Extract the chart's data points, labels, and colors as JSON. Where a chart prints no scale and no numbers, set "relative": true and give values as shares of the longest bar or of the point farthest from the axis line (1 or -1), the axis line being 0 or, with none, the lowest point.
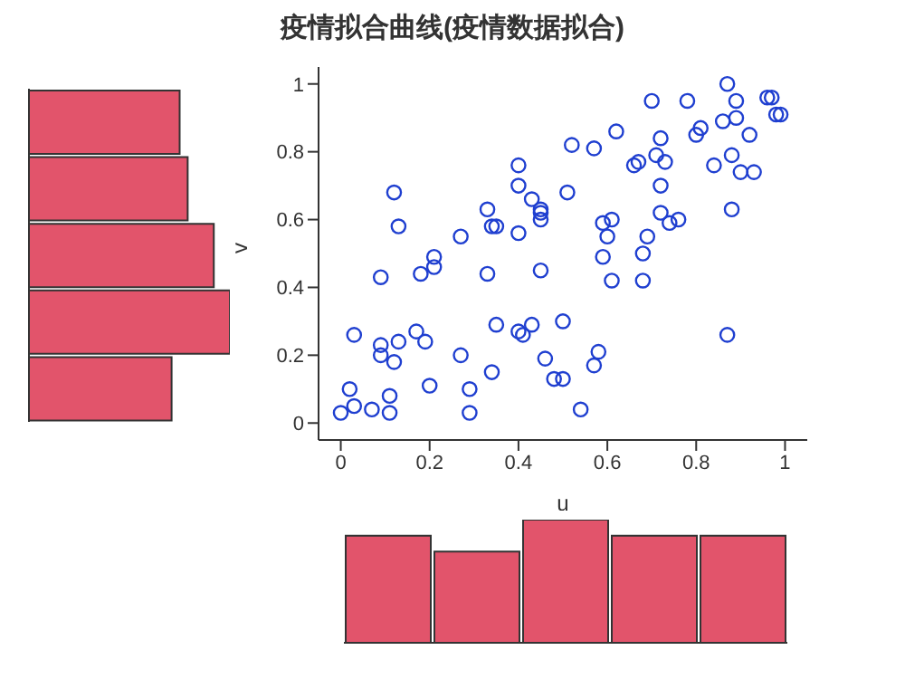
{
  "chart_data": [
    {
      "type": "scatter",
      "title": "疫情拟合曲线(疫情数据拟合)",
      "xlabel": "u",
      "ylabel": "v",
      "marker": "circle",
      "color": "#1f3fd0",
      "xlim": [
        -0.05,
        1.05
      ],
      "ylim": [
        -0.05,
        1.05
      ],
      "xticks": [
        0,
        0.2,
        0.4,
        0.6,
        0.8,
        1
      ],
      "yticks": [
        0,
        0.2,
        0.4,
        0.6,
        0.8,
        1
      ],
      "x": [
        0.0,
        0.02,
        0.03,
        0.03,
        0.07,
        0.09,
        0.09,
        0.09,
        0.11,
        0.11,
        0.12,
        0.13,
        0.12,
        0.13,
        0.17,
        0.18,
        0.19,
        0.2,
        0.21,
        0.21,
        0.27,
        0.27,
        0.29,
        0.29,
        0.33,
        0.33,
        0.34,
        0.34,
        0.35,
        0.35,
        0.4,
        0.4,
        0.4,
        0.4,
        0.41,
        0.43,
        0.45,
        0.45,
        0.45,
        0.45,
        0.43,
        0.46,
        0.48,
        0.5,
        0.5,
        0.51,
        0.52,
        0.54,
        0.57,
        0.58,
        0.57,
        0.59,
        0.59,
        0.6,
        0.61,
        0.61,
        0.62,
        0.66,
        0.67,
        0.68,
        0.68,
        0.69,
        0.7,
        0.71,
        0.72,
        0.72,
        0.72,
        0.73,
        0.74,
        0.76,
        0.78,
        0.8,
        0.81,
        0.84,
        0.86,
        0.87,
        0.88,
        0.87,
        0.88,
        0.89,
        0.89,
        0.9,
        0.92,
        0.93,
        0.96,
        0.97,
        0.98,
        0.99
      ],
      "values": [
        0.03,
        0.1,
        0.05,
        0.26,
        0.04,
        0.43,
        0.2,
        0.23,
        0.03,
        0.08,
        0.68,
        0.58,
        0.18,
        0.24,
        0.27,
        0.44,
        0.24,
        0.11,
        0.49,
        0.46,
        0.55,
        0.2,
        0.1,
        0.03,
        0.44,
        0.63,
        0.15,
        0.58,
        0.58,
        0.29,
        0.76,
        0.7,
        0.56,
        0.27,
        0.26,
        0.66,
        0.63,
        0.6,
        0.62,
        0.45,
        0.29,
        0.19,
        0.13,
        0.13,
        0.3,
        0.68,
        0.82,
        0.04,
        0.17,
        0.21,
        0.81,
        0.49,
        0.59,
        0.55,
        0.6,
        0.42,
        0.86,
        0.76,
        0.77,
        0.5,
        0.42,
        0.55,
        0.95,
        0.79,
        0.62,
        0.7,
        0.84,
        0.77,
        0.59,
        0.6,
        0.95,
        0.85,
        0.87,
        0.76,
        0.89,
        1.0,
        0.63,
        0.26,
        0.79,
        0.9,
        0.95,
        0.74,
        0.85,
        0.74,
        0.96,
        0.96,
        0.91,
        0.91
      ]
    },
    {
      "type": "bar",
      "orientation": "horizontal",
      "relative": true,
      "color": "#e2546b",
      "categories": [
        null,
        null,
        null,
        null,
        null
      ],
      "values": [
        0.75,
        0.79,
        0.92,
        1,
        0.71
      ]
    },
    {
      "type": "bar",
      "relative": true,
      "color": "#e2546b",
      "categories": [
        null,
        null,
        null,
        null,
        null
      ],
      "values": [
        0.87,
        0.74,
        1,
        0.87,
        0.87
      ]
    }
  ]
}
